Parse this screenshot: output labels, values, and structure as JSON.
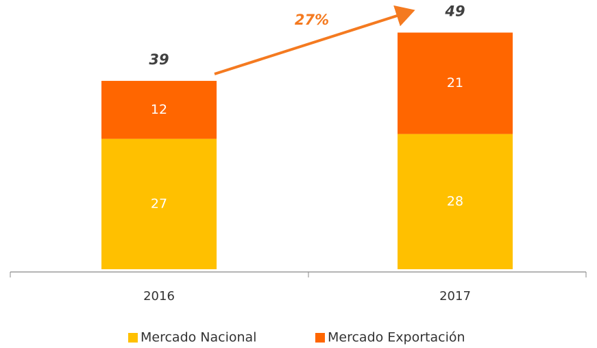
{
  "chart_data": {
    "type": "stacked_bar",
    "categories": [
      "2016",
      "2017"
    ],
    "series": [
      {
        "name": "Mercado Nacional",
        "color": "#FFC000",
        "values": [
          27,
          28
        ]
      },
      {
        "name": "Mercado Exportación",
        "color": "#FF6600",
        "values": [
          12,
          21
        ]
      }
    ],
    "totals": [
      39,
      49
    ],
    "annotation": "27%"
  }
}
